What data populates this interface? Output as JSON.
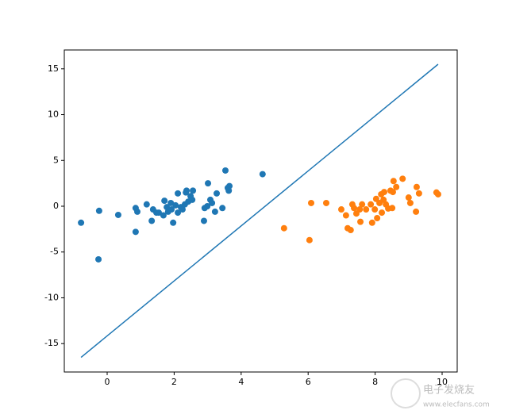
{
  "chart_data": {
    "type": "scatter",
    "xlim": [
      -1.28,
      10.45
    ],
    "ylim": [
      -18.1,
      17.06
    ],
    "xticks": [
      0,
      2,
      4,
      6,
      8,
      10
    ],
    "yticks": [
      -15,
      -10,
      -5,
      0,
      5,
      10,
      15
    ],
    "series": [
      {
        "color": "#1f77b4",
        "mode": "marker",
        "x": [
          -0.78,
          -0.24,
          -0.26,
          0.33,
          0.85,
          0.9,
          0.85,
          1.18,
          1.33,
          1.37,
          1.47,
          1.54,
          1.71,
          1.68,
          1.78,
          1.82,
          1.9,
          1.92,
          1.97,
          2.04,
          2.11,
          2.11,
          2.2,
          2.25,
          2.32,
          2.35,
          2.37,
          2.42,
          2.49,
          2.54,
          2.56,
          2.89,
          2.91,
          2.99,
          3.01,
          3.08,
          3.13,
          3.22,
          3.27,
          3.44,
          3.53,
          3.6,
          3.63,
          3.65,
          4.64
        ],
        "values": [
          -1.8,
          -0.5,
          -5.8,
          -0.95,
          -0.2,
          -0.6,
          -2.8,
          0.2,
          -1.6,
          -0.35,
          -0.7,
          -0.7,
          0.6,
          -1.0,
          -0.1,
          -0.6,
          0.35,
          -0.35,
          -1.8,
          0.1,
          1.4,
          -0.7,
          -0.1,
          -0.35,
          0.2,
          1.5,
          1.7,
          0.5,
          1.1,
          0.7,
          1.7,
          -1.6,
          -0.2,
          0,
          2.5,
          0.7,
          0.35,
          -0.6,
          1.4,
          -0.2,
          3.9,
          2.0,
          1.7,
          2.2,
          3.5
        ]
      },
      {
        "color": "#ff7f0e",
        "mode": "marker",
        "x": [
          5.28,
          6.04,
          6.09,
          6.54,
          6.99,
          7.13,
          7.18,
          7.27,
          7.32,
          7.37,
          7.44,
          7.54,
          7.56,
          7.61,
          7.73,
          7.87,
          7.91,
          7.99,
          8.03,
          8.06,
          8.13,
          8.18,
          8.2,
          8.25,
          8.27,
          8.32,
          8.39,
          8.46,
          8.51,
          8.53,
          8.55,
          8.63,
          8.82,
          9.0,
          9.05,
          9.22,
          9.24,
          9.31,
          9.83,
          9.88
        ],
        "values": [
          -2.4,
          -3.7,
          0.35,
          0.35,
          -0.35,
          -1.0,
          -2.4,
          -2.6,
          0.2,
          -0.2,
          -0.8,
          -0.35,
          -1.7,
          0.2,
          -0.35,
          0.2,
          -1.8,
          -0.35,
          0.8,
          -1.3,
          0.35,
          1.3,
          -0.7,
          0.7,
          1.55,
          0.2,
          -0.25,
          1.7,
          -0.2,
          1.55,
          2.75,
          2.1,
          3.0,
          0.95,
          0.35,
          -0.6,
          2.1,
          1.4,
          1.5,
          1.3
        ]
      },
      {
        "color": "#1f77b4",
        "mode": "line",
        "x": [
          -0.78,
          9.88
        ],
        "values": [
          -16.5,
          15.5
        ]
      }
    ]
  },
  "watermark": {
    "text": "电子发烧友",
    "url": "www.elecfans.com"
  }
}
